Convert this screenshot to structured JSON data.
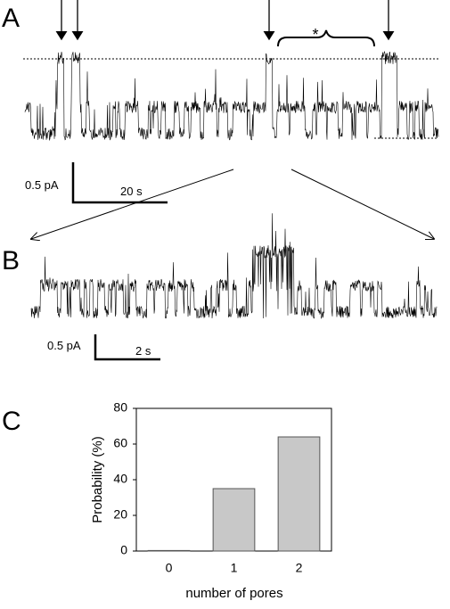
{
  "panels": {
    "a": {
      "label": "A",
      "scale_y": "0.5 pA",
      "scale_x": "20 s",
      "annotation": "*"
    },
    "b": {
      "label": "B",
      "scale_y": "0.5 pA",
      "scale_x": "2 s"
    },
    "c": {
      "label": "C"
    }
  },
  "chart_data": {
    "type": "bar",
    "categories": [
      "0",
      "1",
      "2"
    ],
    "values": [
      0.3,
      35,
      64
    ],
    "color": "#c8c8c8",
    "ylim": [
      0,
      80
    ],
    "yticks": [
      0,
      20,
      40,
      60,
      80
    ],
    "y_label": "Probability (%)",
    "x_label": "number of pores"
  }
}
